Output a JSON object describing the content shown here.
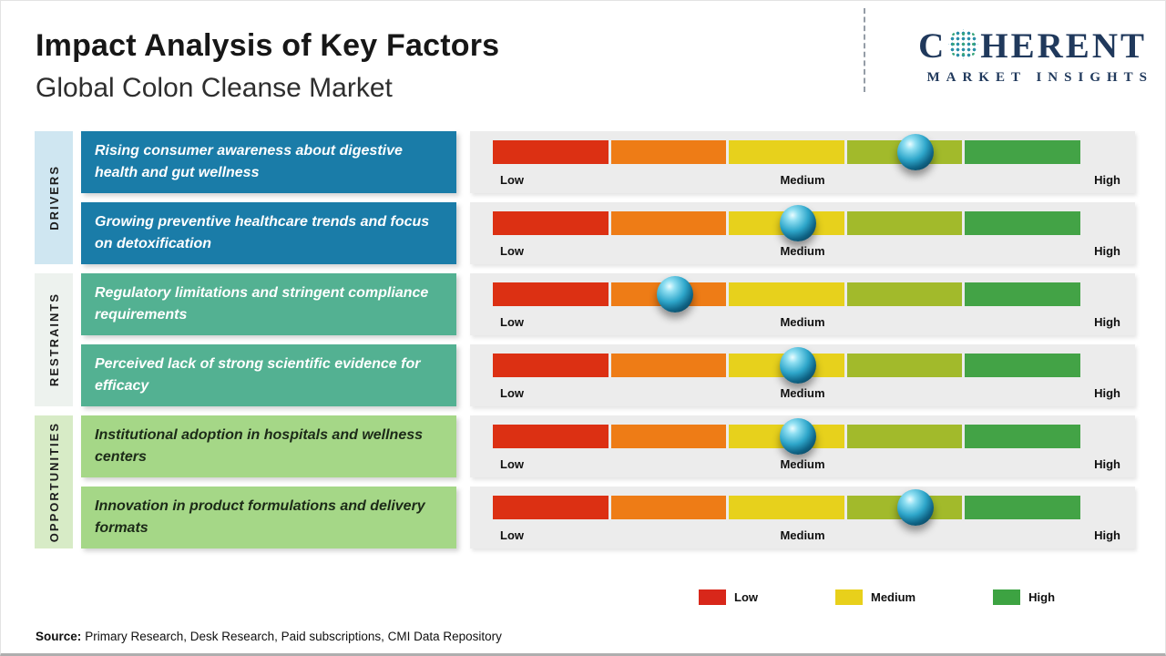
{
  "header": {
    "title": "Impact Analysis of Key Factors",
    "subtitle": "Global Colon Cleanse Market"
  },
  "logo": {
    "word_start": "C",
    "word_end": "HERENT",
    "tagline": "MARKET INSIGHTS",
    "brand_color": "#20395c"
  },
  "sidebar": {
    "groups": [
      "DRIVERS",
      "RESTRAINTS",
      "OPPORTUNITIES"
    ]
  },
  "chart_data": {
    "type": "table",
    "title": "Impact Analysis of Key Factors",
    "subtitle": "Global Colon Cleanse Market",
    "scale": {
      "labels": [
        "Low",
        "Medium",
        "High"
      ],
      "range": [
        0,
        1
      ]
    },
    "rows": [
      {
        "category": "Drivers",
        "factor": "Rising consumer awareness about digestive health and gut wellness",
        "impact": 0.72,
        "impact_label": "Medium-High"
      },
      {
        "category": "Drivers",
        "factor": "Growing preventive healthcare trends and focus on detoxification",
        "impact": 0.52,
        "impact_label": "Medium"
      },
      {
        "category": "Restraints",
        "factor": "Regulatory limitations and stringent compliance requirements",
        "impact": 0.31,
        "impact_label": "Low-Medium"
      },
      {
        "category": "Restraints",
        "factor": "Perceived lack of strong scientific evidence for efficacy",
        "impact": 0.52,
        "impact_label": "Medium"
      },
      {
        "category": "Opportunities",
        "factor": "Institutional adoption in hospitals and wellness centers",
        "impact": 0.52,
        "impact_label": "Medium"
      },
      {
        "category": "Opportunities",
        "factor": "Innovation in product formulations and delivery formats",
        "impact": 0.72,
        "impact_label": "Medium-High"
      }
    ],
    "segment_colors": [
      "#dc3013",
      "#ee7c16",
      "#e7d11c",
      "#a2ba2b",
      "#43a346"
    ],
    "legend_position": "bottom-right"
  },
  "legend": {
    "items": [
      {
        "label": "Low",
        "color": "#d8271a"
      },
      {
        "label": "Medium",
        "color": "#e8d01b"
      },
      {
        "label": "High",
        "color": "#3da342"
      }
    ]
  },
  "source": {
    "label": "Source:",
    "text": "Primary Research, Desk Research, Paid subscriptions, CMI Data Repository"
  },
  "colors": {
    "driver_box": "#1a7ca8",
    "restraint_box": "#53b192",
    "opportunity_box": "#a5d787",
    "driver_strip": "#cfe6f1",
    "restraint_strip": "#edf2ee",
    "opportunity_strip": "#d7ebc6",
    "bar_background": "#ececec"
  }
}
